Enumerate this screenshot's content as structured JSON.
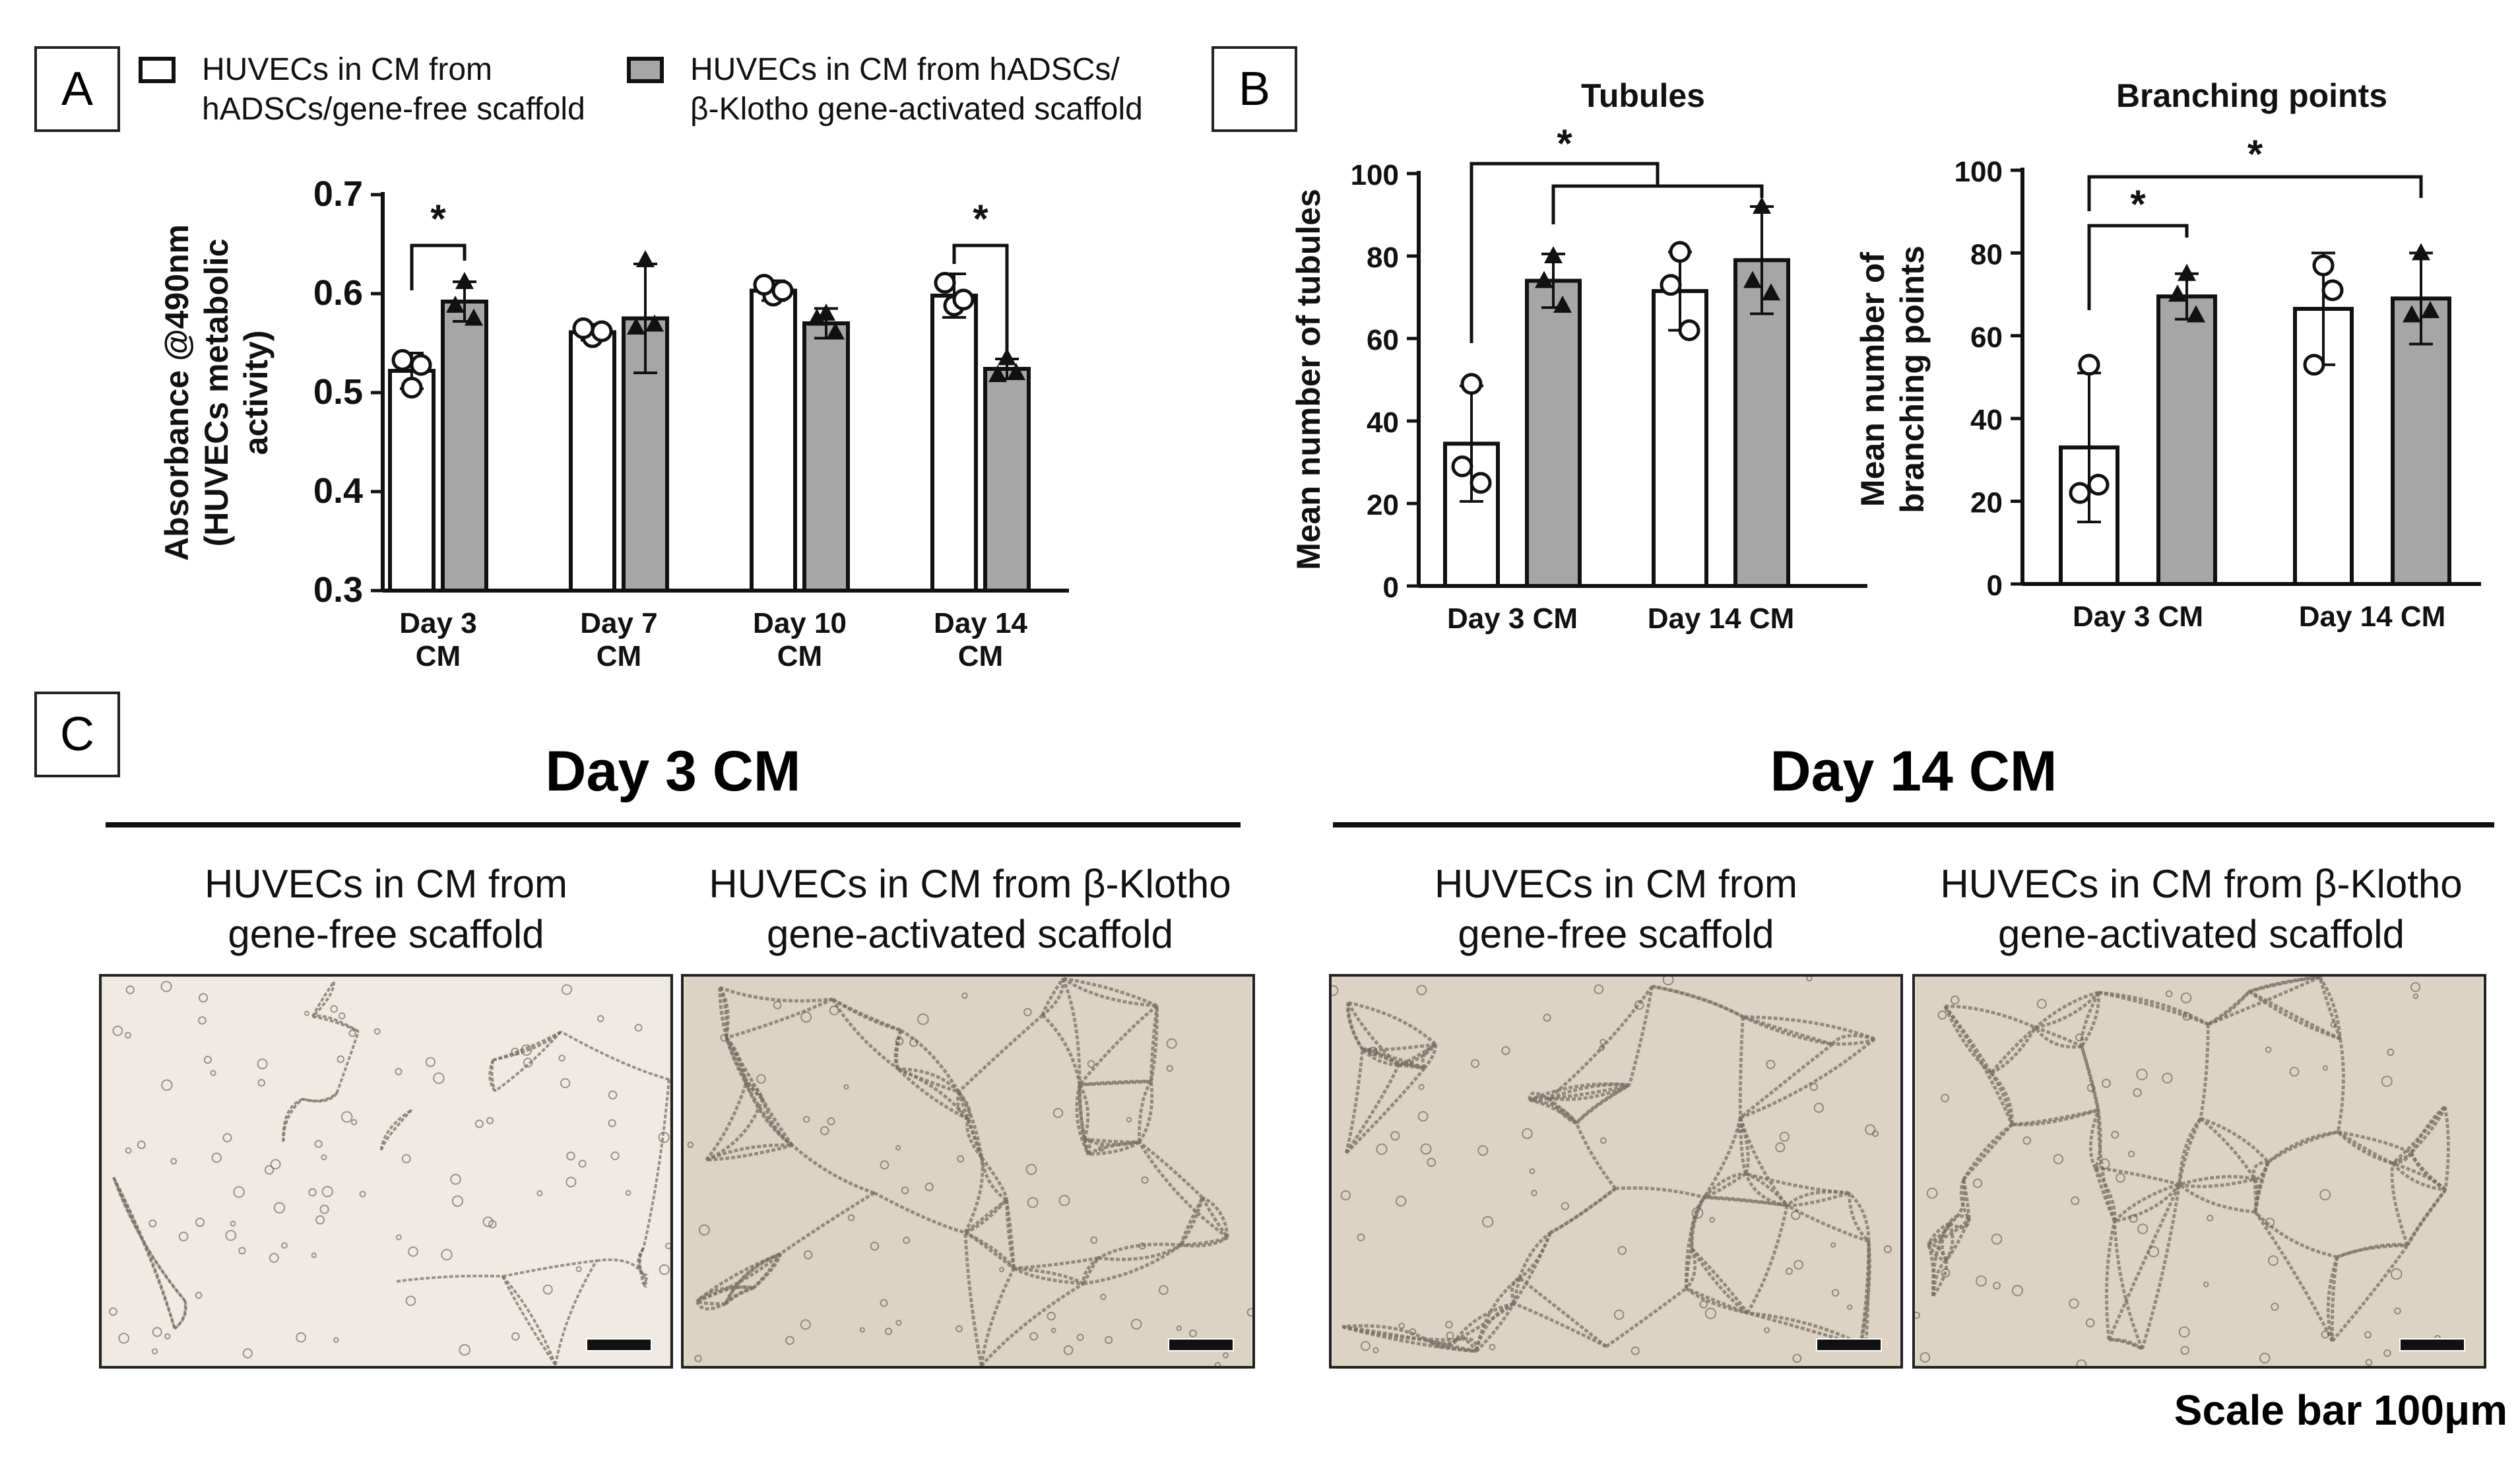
{
  "panels": {
    "a_label": "A",
    "b_label": "B",
    "c_label": "C"
  },
  "legend": {
    "open_line1": "HUVECs in CM from",
    "open_line2": "hADSCs/gene-free scaffold",
    "filled_line1": "HUVECs in CM from hADSCs/",
    "filled_line2": "β-Klotho gene-activated scaffold"
  },
  "colors": {
    "open_bar": "#ffffff",
    "filled_bar": "#a6a6a6",
    "outline": "#111111",
    "micro_bg_a": "#efebe4",
    "micro_bg_b": "#ddd3c4"
  },
  "chart_data": [
    {
      "id": "A",
      "type": "bar",
      "title": "",
      "ylabel": "Absorbance @490nm (HUVECs metabolic activity)",
      "ylabel_lines": [
        "Absorbance @490nm",
        "(HUVECs metabolic",
        "activity)"
      ],
      "ylim": [
        0.3,
        0.7
      ],
      "yticks": [
        "0.3",
        "0.4",
        "0.5",
        "0.6",
        "0.7"
      ],
      "categories": [
        [
          "Day 3",
          "CM"
        ],
        [
          "Day 7",
          "CM"
        ],
        [
          "Day 10",
          "CM"
        ],
        [
          "Day 14",
          "CM"
        ]
      ],
      "series": [
        {
          "style": "open",
          "values": [
            0.522,
            0.561,
            0.603,
            0.598
          ],
          "err": [
            0.018,
            0.008,
            0.01,
            0.022
          ],
          "points": [
            [
              0.505,
              0.533,
              0.528
            ],
            [
              0.556,
              0.565,
              0.562
            ],
            [
              0.598,
              0.609,
              0.603
            ],
            [
              0.588,
              0.611,
              0.594
            ]
          ]
        },
        {
          "style": "filled",
          "values": [
            0.592,
            0.575,
            0.57,
            0.524
          ],
          "err": [
            0.02,
            0.055,
            0.015,
            0.01
          ],
          "points": [
            [
              0.612,
              0.588,
              0.575
            ],
            [
              0.634,
              0.566,
              0.569
            ],
            [
              0.58,
              0.575,
              0.561
            ],
            [
              0.535,
              0.518,
              0.52
            ]
          ]
        }
      ],
      "significance": [
        {
          "group": 0,
          "label": "*"
        },
        {
          "group": 3,
          "label": "*"
        }
      ]
    },
    {
      "id": "B1",
      "type": "bar",
      "title": "Tubules",
      "ylabel": "Mean number of tubules",
      "ylabel_lines": [
        "Mean number of tubules"
      ],
      "ylim": [
        0,
        100
      ],
      "yticks": [
        "0",
        "20",
        "40",
        "60",
        "80",
        "100"
      ],
      "categories": [
        [
          "Day 3 CM"
        ],
        [
          "Day 14 CM"
        ]
      ],
      "series": [
        {
          "style": "open",
          "values": [
            34.5,
            71.5
          ],
          "err": [
            14,
            9.5
          ],
          "points": [
            [
              49,
              29,
              25
            ],
            [
              81,
              73,
              62
            ]
          ]
        },
        {
          "style": "filled",
          "values": [
            74,
            79
          ],
          "err": [
            6.5,
            13
          ],
          "points": [
            [
              80,
              74,
              68
            ],
            [
              92,
              74,
              71
            ]
          ]
        }
      ],
      "significance": [
        {
          "label": "*",
          "from": 0,
          "to": "rest"
        }
      ]
    },
    {
      "id": "B2",
      "type": "bar",
      "title": "Branching points",
      "ylabel": "Mean number of branching points",
      "ylabel_lines": [
        "Mean number of",
        "branching points"
      ],
      "ylim": [
        0,
        100
      ],
      "yticks": [
        "0",
        "20",
        "40",
        "60",
        "80",
        "100"
      ],
      "categories": [
        [
          "Day 3 CM"
        ],
        [
          "Day 14 CM"
        ]
      ],
      "series": [
        {
          "style": "open",
          "values": [
            33,
            66.5
          ],
          "err": [
            18,
            13.5
          ],
          "points": [
            [
              53,
              22,
              24
            ],
            [
              77,
              53,
              71
            ]
          ]
        },
        {
          "style": "filled",
          "values": [
            69.5,
            69
          ],
          "err": [
            5.5,
            11
          ],
          "points": [
            [
              75,
              70,
              65
            ],
            [
              80,
              65,
              66
            ]
          ]
        }
      ],
      "significance": [
        {
          "label": "*",
          "from": 0,
          "to": 1
        },
        {
          "label": "*",
          "from": 0,
          "to": 3
        }
      ]
    }
  ],
  "panel_c": {
    "day3_title": "Day 3 CM",
    "day14_title": "Day 14 CM",
    "cond_free_line1": "HUVECs in CM from",
    "cond_free_line2": "gene-free scaffold",
    "cond_klotho_line1": "HUVECs in CM from β-Klotho",
    "cond_klotho_line2": "gene-activated scaffold",
    "scale_note": "Scale bar 100μm"
  }
}
